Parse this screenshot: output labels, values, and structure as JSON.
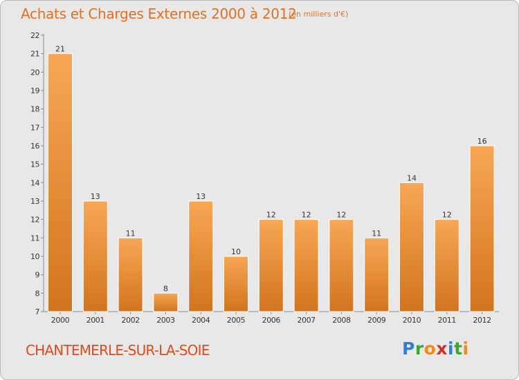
{
  "header": {
    "title": "Achats et Charges Externes 2000 à 2012",
    "subtitle": "(en milliers d'€)"
  },
  "footer": {
    "town": "CHANTEMERLE-SUR-LA-SOIE",
    "logo_letters": [
      "P",
      "r",
      "o",
      "x",
      "i",
      "t",
      "i"
    ]
  },
  "colors": {
    "bar_light": "#f8a755",
    "bar_dark": "#d2741f",
    "title": "#e07020"
  },
  "chart_data": {
    "type": "bar",
    "categories": [
      "2000",
      "2001",
      "2002",
      "2003",
      "2004",
      "2005",
      "2006",
      "2007",
      "2008",
      "2009",
      "2010",
      "2011",
      "2012"
    ],
    "values": [
      21,
      13,
      11,
      8,
      13,
      10,
      12,
      12,
      12,
      11,
      14,
      12,
      16
    ],
    "title": "Achats et Charges Externes 2000 à 2012",
    "subtitle": "(en milliers d'€)",
    "ylim": [
      7,
      22
    ],
    "yticks": [
      7,
      8,
      9,
      10,
      11,
      12,
      13,
      14,
      15,
      16,
      17,
      18,
      19,
      20,
      21,
      22
    ],
    "grid": false,
    "data_labels": true
  }
}
